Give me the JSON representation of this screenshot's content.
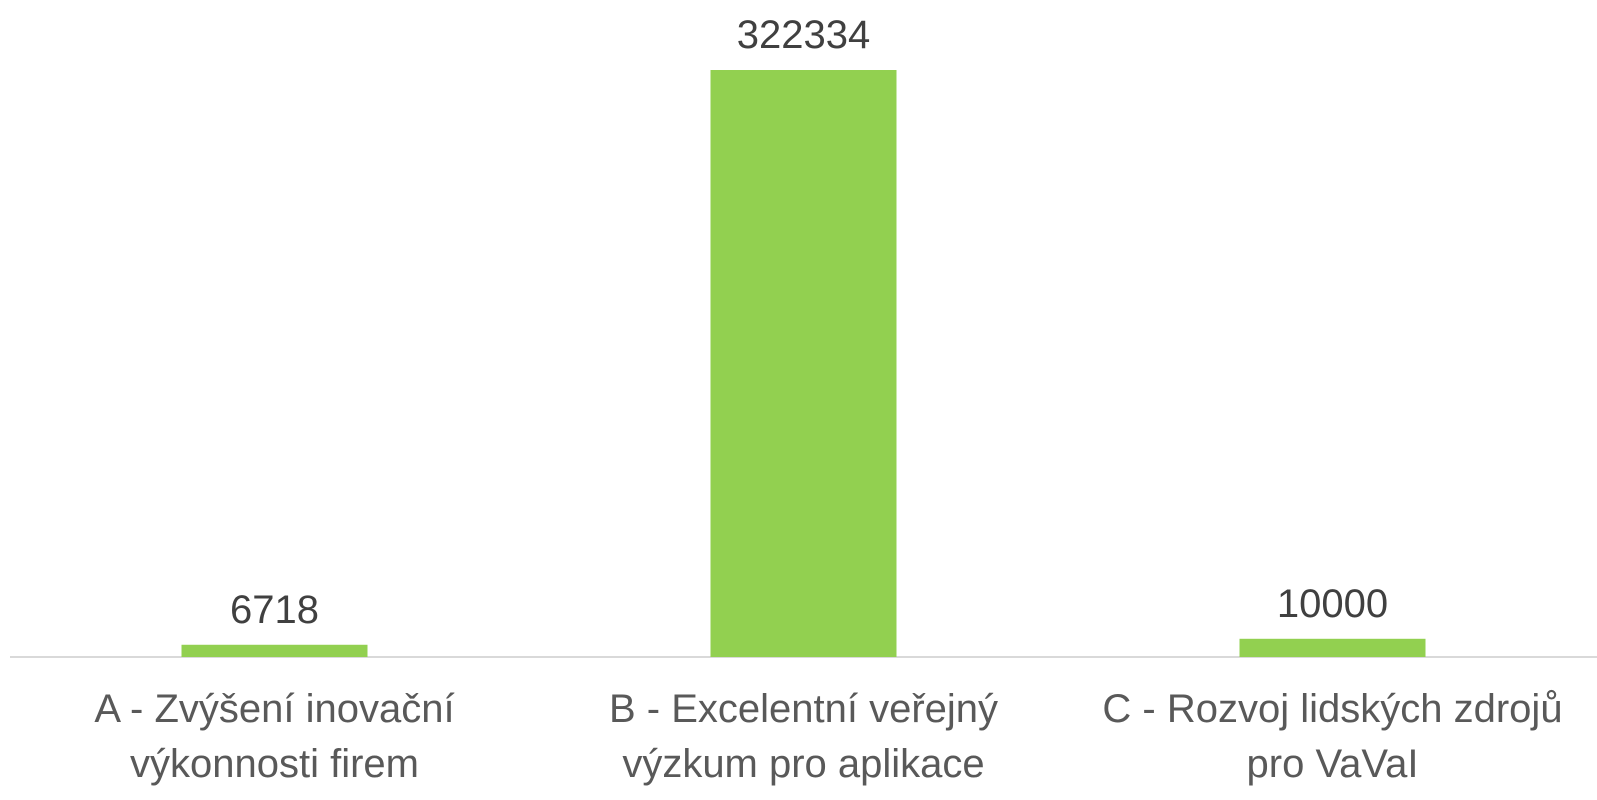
{
  "chart_data": {
    "type": "bar",
    "categories": [
      [
        "A - Zvýšení inovační",
        "výkonnosti firem"
      ],
      [
        "B - Excelentní veřejný",
        "výzkum pro aplikace"
      ],
      [
        "C - Rozvoj lidských zdrojů",
        "pro VaVaI"
      ]
    ],
    "values": [
      6718,
      322334,
      10000
    ],
    "value_labels": [
      "6718",
      "322334",
      "10000"
    ],
    "title": "",
    "xlabel": "",
    "ylabel": "",
    "ylim": [
      0,
      322334
    ],
    "grid": false,
    "legend": "none",
    "bar_color": "#92d050",
    "axis_color": "#d9d9d9"
  }
}
